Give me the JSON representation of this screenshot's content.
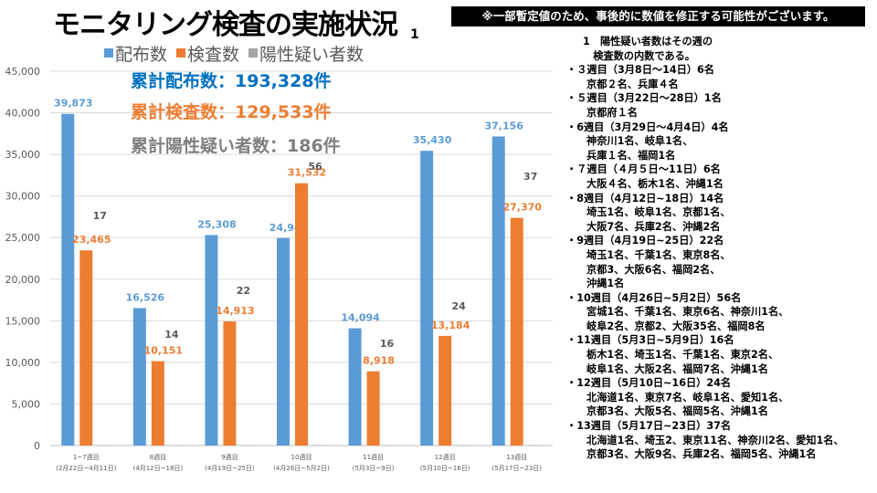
{
  "title": "モニタリング検査の実施状況",
  "title_superscript": "1",
  "notice": "※一部暫定値のため、事後的に数値を修正する可能性がございます。",
  "legend": [
    {
      "label": "配布数",
      "color": "#5b9bd5"
    },
    {
      "label": "検査数",
      "color": "#ed7d31"
    },
    {
      "label": "陽性疑い者数",
      "color": "#a5a5a5"
    }
  ],
  "totals": {
    "distributed": "累計配布数：193,328件",
    "tested": "累計検査数：129,533件",
    "positive": "累計陽性疑い者数：186件"
  },
  "chart_data": {
    "type": "bar",
    "categories": [
      {
        "week": "1~7週目",
        "dates": "(2月22日~4月11日)"
      },
      {
        "week": "8週目",
        "dates": "(4月12日~18日)"
      },
      {
        "week": "9週目",
        "dates": "(4月19日~25日)"
      },
      {
        "week": "10週目",
        "dates": "(4月26日~5月2日)"
      },
      {
        "week": "11週目",
        "dates": "(5月3日~9日)"
      },
      {
        "week": "12週目",
        "dates": "(5月10日~16日)"
      },
      {
        "week": "13週目",
        "dates": "(5月17日~23日)"
      }
    ],
    "series": [
      {
        "name": "配布数",
        "color": "#5b9bd5",
        "label_color": "#5b9bd5",
        "values": [
          39873,
          16526,
          25308,
          24941,
          14094,
          35430,
          37156
        ]
      },
      {
        "name": "検査数",
        "color": "#ed7d31",
        "label_color": "#ed7d31",
        "values": [
          23465,
          10151,
          14913,
          31532,
          8918,
          13184,
          27370
        ]
      },
      {
        "name": "陽性疑い者数",
        "color": "#a5a5a5",
        "label_color": "#595959",
        "values": [
          17,
          14,
          22,
          56,
          16,
          24,
          37
        ]
      }
    ],
    "ylim": [
      0,
      45000
    ],
    "yticks": [
      0,
      5000,
      10000,
      15000,
      20000,
      25000,
      30000,
      35000,
      40000,
      45000
    ],
    "grid": true
  },
  "notes": {
    "heading": "1　陽性疑い者数はその週の\n　検査数の内数である。",
    "items": [
      {
        "period": "・３週目（3月8日～14日）6名",
        "lines": [
          "京都２名、兵庫４名"
        ]
      },
      {
        "period": "・５週目（3月22日～28日）1名",
        "lines": [
          "京都府１名"
        ]
      },
      {
        "period": "・6週目（3月29日～4月4日）4名",
        "lines": [
          "神奈川1名、岐阜1名、",
          "兵庫１名、福岡1名"
        ]
      },
      {
        "period": "・７週目（４月５日～11日）6名",
        "lines": [
          "大阪４名、栃木1名、沖縄1名"
        ]
      },
      {
        "period": "・8週目（4月12日~18日）14名",
        "lines": [
          "埼玉1名、岐阜1名、京都1名、",
          "大阪7名、兵庫2名、沖縄2名"
        ]
      },
      {
        "period": "・9週目（4月19日~25日）22名",
        "lines": [
          "埼玉1名、千葉1名、東京8名、",
          "京都3、大阪6名、福岡2名、",
          "沖縄1名"
        ]
      },
      {
        "period": "・10週目（4月26日~5月2日）56名",
        "lines": [
          "宮城1名、千葉1名、東京6名、神奈川1名、",
          "岐阜2名、京都2、大阪35名、福岡8名"
        ]
      },
      {
        "period": "・11週目（5月3日~5月9日）16名",
        "lines": [
          "栃木1名、埼玉1名、千葉1名、東京2名、",
          "岐阜1名、大阪2名、福岡7名、沖縄1名"
        ]
      },
      {
        "period": "・12週目（5月10日~16日）24名",
        "lines": [
          "北海道1名、東京7名、岐阜1名、愛知1名、",
          "京都3名、大阪5名、福岡5名、沖縄1名"
        ]
      },
      {
        "period": "・13週目（5月17日~23日）37名",
        "lines": [
          "北海道1名、埼玉2、東京11名、神奈川2名、愛知1名、",
          "京都3名、大阪9名、兵庫2名、福岡5名、沖縄1名"
        ]
      }
    ]
  }
}
